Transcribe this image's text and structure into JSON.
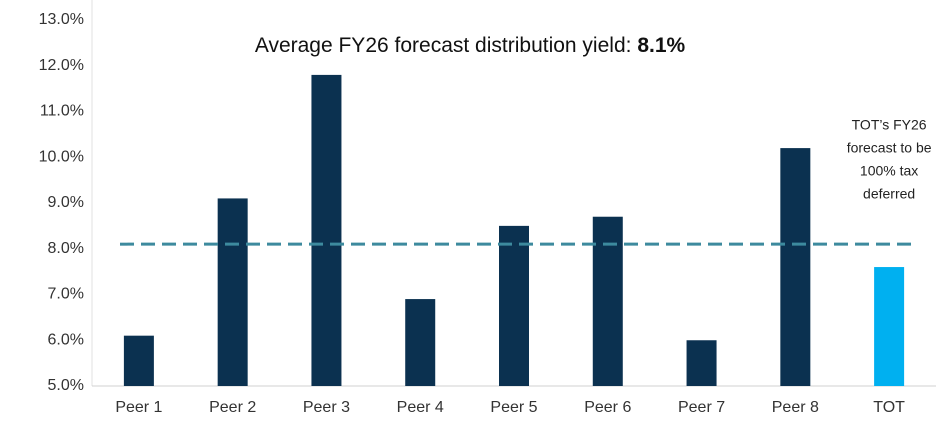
{
  "chart_data": {
    "type": "bar",
    "title": "Average FY26 forecast distribution yield:",
    "average": {
      "value": 8.1,
      "label": "8.1%"
    },
    "average_color": "#3d8a9e",
    "categories": [
      "Peer 1",
      "Peer 2",
      "Peer 3",
      "Peer 4",
      "Peer 5",
      "Peer 6",
      "Peer 7",
      "Peer 8",
      "TOT"
    ],
    "values": [
      6.1,
      9.1,
      11.8,
      6.9,
      8.5,
      8.7,
      6.0,
      10.2,
      7.6
    ],
    "colors": [
      "#0b3150",
      "#0b3150",
      "#0b3150",
      "#0b3150",
      "#0b3150",
      "#0b3150",
      "#0b3150",
      "#0b3150",
      "#00b0f0"
    ],
    "annotation": [
      "TOT’s FY26",
      "forecast to be",
      "100% tax",
      "deferred"
    ],
    "ylim": [
      5,
      13
    ],
    "yticks": [
      {
        "value": 5,
        "label": "5.0%"
      },
      {
        "value": 6,
        "label": "6.0%"
      },
      {
        "value": 7,
        "label": "7.0%"
      },
      {
        "value": 8,
        "label": "8.0%"
      },
      {
        "value": 9,
        "label": "9.0%"
      },
      {
        "value": 10,
        "label": "10.0%"
      },
      {
        "value": 11,
        "label": "11.0%"
      },
      {
        "value": 12,
        "label": "12.0%"
      },
      {
        "value": 13,
        "label": "13.0%"
      }
    ],
    "grid": false
  }
}
